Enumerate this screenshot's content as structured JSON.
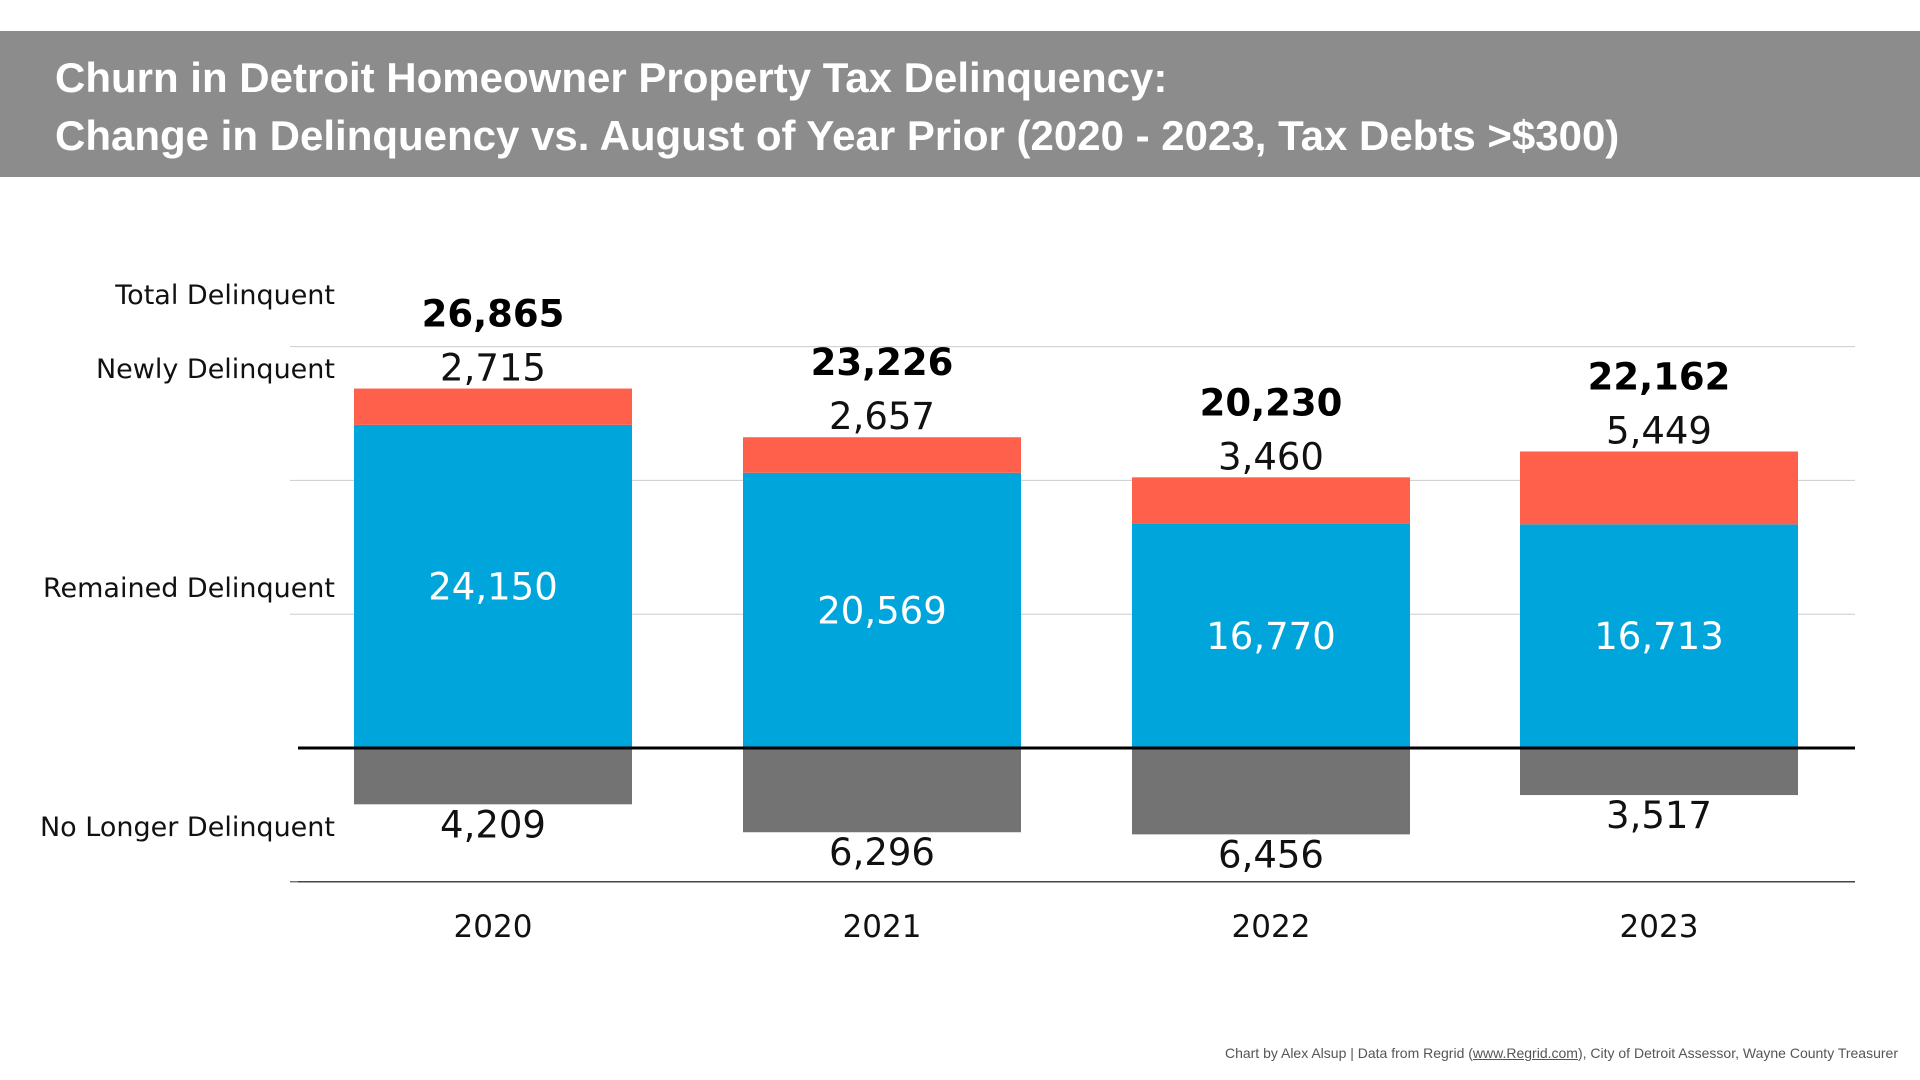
{
  "title": {
    "line1": "Churn in Detroit Homeowner Property Tax Delinquency:",
    "line2": "Change in Delinquency vs. August of Year Prior (2020 - 2023, Tax Debts >$300)"
  },
  "footer": {
    "prefix": "Chart by Alex Alsup | Data from Regrid (",
    "link": "www.Regrid.com",
    "suffix": "), City of Detroit Assessor, Wayne County Treasurer"
  },
  "colors": {
    "title_bg": "#8c8c8c",
    "newly": "#fe604c",
    "remained": "#00a6db",
    "no_longer": "#737373",
    "grid": "#cccccc",
    "baseline": "#000000"
  },
  "chart_data": {
    "type": "bar",
    "stacked": true,
    "categories": [
      "2020",
      "2021",
      "2022",
      "2023"
    ],
    "row_labels": {
      "total": "Total Delinquent",
      "newly": "Newly Delinquent",
      "remained": "Remained Delinquent",
      "no_longer": "No Longer Delinquent"
    },
    "totals": [
      26865,
      23226,
      20230,
      22162
    ],
    "total_labels": [
      "26,865",
      "23,226",
      "20,230",
      "22,162"
    ],
    "series": [
      {
        "key": "remained",
        "values": [
          24150,
          20569,
          16770,
          16713
        ],
        "labels": [
          "24,150",
          "20,569",
          "16,770",
          "16,713"
        ]
      },
      {
        "key": "newly",
        "values": [
          2715,
          2657,
          3460,
          5449
        ],
        "labels": [
          "2,715",
          "2,657",
          "3,460",
          "5,449"
        ]
      },
      {
        "key": "no_longer",
        "values": [
          -4209,
          -6296,
          -6456,
          -3517
        ],
        "labels": [
          "4,209",
          "6,296",
          "6,456",
          "3,517"
        ]
      }
    ],
    "ylim": [
      -10000,
      30000
    ],
    "grid": true,
    "gridlines": [
      -10000,
      10000,
      20000,
      30000
    ]
  }
}
